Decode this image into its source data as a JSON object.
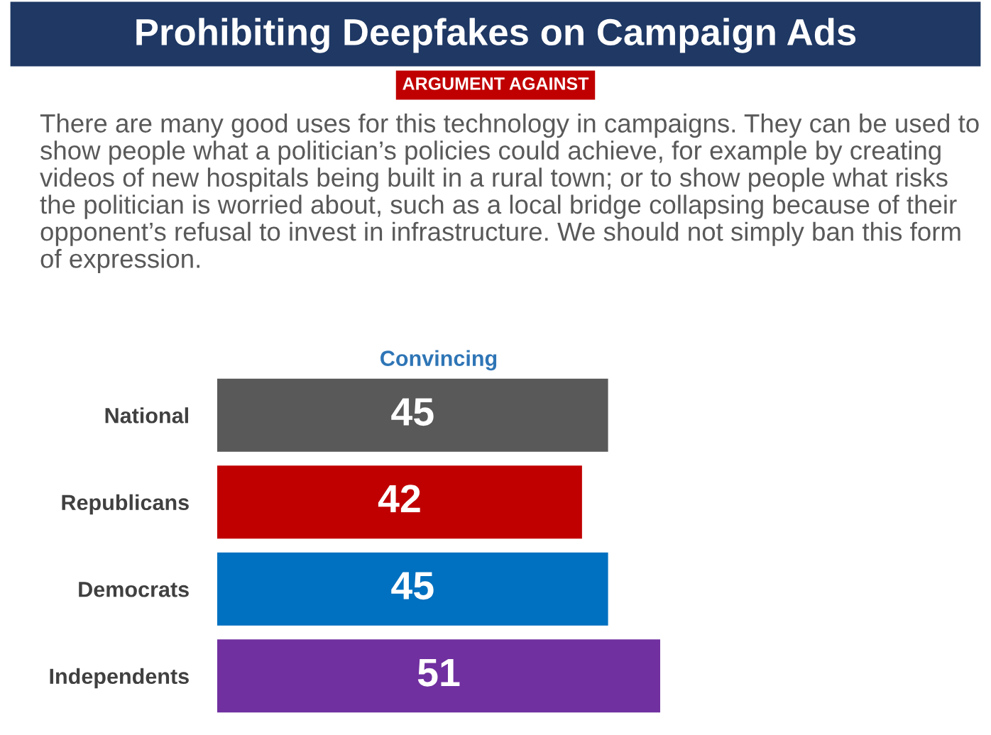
{
  "chart_data": {
    "type": "bar",
    "orientation": "horizontal",
    "title": "Prohibiting Deepfakes on Campaign Ads",
    "subtitle": "ARGUMENT AGAINST",
    "annotations": [
      "There are many good uses for this technology in campaigns. They can be used to show people what a politician’s policies could achieve, for example by creating videos of new hospitals being built in a rural town; or to show people what risks the politician is worried about, such as a local bridge collapsing because of their opponent’s refusal to invest in infrastructure. We should not simply ban this form of expression."
    ],
    "xlabel": "Convincing",
    "categories": [
      "National",
      "Republicans",
      "Democrats",
      "Independents"
    ],
    "values": [
      45,
      42,
      45,
      51
    ],
    "colors": [
      "#595959",
      "#c00000",
      "#0070c0",
      "#7030a0"
    ],
    "data_labels": true,
    "grid": false,
    "legend": false,
    "tick_labels": "y"
  }
}
